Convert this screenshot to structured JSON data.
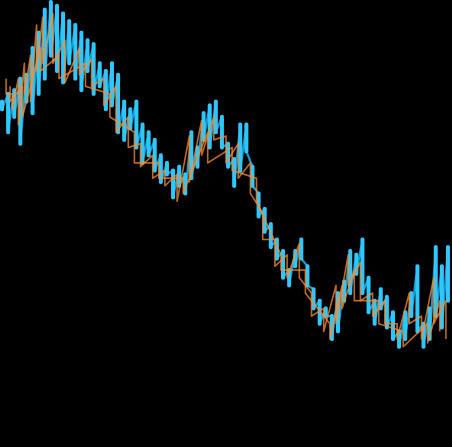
{
  "chart_data": {
    "type": "line",
    "title": "",
    "xlabel": "",
    "ylabel": "",
    "grid": false,
    "legend": "none",
    "x_range": [
      0,
      220
    ],
    "y_range": [
      0,
      100
    ],
    "background": "#000000",
    "colors": {
      "primary": "#2ec8ff",
      "primary_soft": "#1aa9e6",
      "secondary": "#ff8c2f",
      "secondary_mid": "#ff5a3d",
      "secondary_soft": "#ff3b6e"
    },
    "series": [
      {
        "style": "cyan",
        "color": "#2ec8ff",
        "values": [
          [
            0,
            72,
            74
          ],
          [
            3,
            66,
            76
          ],
          [
            6,
            70,
            77
          ],
          [
            9,
            63,
            80
          ],
          [
            12,
            74,
            81
          ],
          [
            15,
            71,
            88
          ],
          [
            18,
            76,
            92
          ],
          [
            21,
            80,
            98
          ],
          [
            24,
            86,
            100
          ],
          [
            27,
            82,
            99
          ],
          [
            30,
            79,
            97
          ],
          [
            33,
            84,
            95
          ],
          [
            36,
            80,
            94
          ],
          [
            39,
            77,
            92
          ],
          [
            42,
            82,
            90
          ],
          [
            45,
            76,
            89
          ],
          [
            48,
            78,
            84
          ],
          [
            51,
            72,
            82
          ],
          [
            54,
            73,
            84
          ],
          [
            57,
            66,
            81
          ],
          [
            60,
            64,
            74
          ],
          [
            63,
            67,
            72
          ],
          [
            66,
            62,
            74
          ],
          [
            69,
            58,
            68
          ],
          [
            72,
            60,
            66
          ],
          [
            75,
            56,
            64
          ],
          [
            78,
            53,
            60
          ],
          [
            81,
            55,
            58
          ],
          [
            84,
            49,
            56
          ],
          [
            87,
            52,
            57
          ],
          [
            90,
            50,
            55
          ],
          [
            93,
            54,
            66
          ],
          [
            96,
            57,
            62
          ],
          [
            99,
            64,
            71
          ],
          [
            102,
            62,
            73
          ],
          [
            105,
            66,
            74
          ],
          [
            108,
            62,
            70
          ],
          [
            111,
            57,
            63
          ],
          [
            114,
            52,
            59
          ],
          [
            117,
            56,
            68
          ],
          [
            120,
            61,
            68
          ],
          [
            123,
            52,
            57
          ],
          [
            126,
            44,
            50
          ],
          [
            129,
            40,
            46
          ],
          [
            132,
            36,
            42
          ],
          [
            135,
            33,
            38
          ],
          [
            138,
            28,
            35
          ],
          [
            141,
            26,
            30
          ],
          [
            144,
            31,
            35
          ],
          [
            147,
            33,
            38
          ],
          [
            150,
            26,
            31
          ],
          [
            153,
            20,
            25
          ],
          [
            156,
            16,
            22
          ],
          [
            159,
            18,
            20
          ],
          [
            162,
            12,
            18
          ],
          [
            165,
            14,
            24
          ],
          [
            168,
            22,
            27
          ],
          [
            171,
            24,
            35
          ],
          [
            174,
            29,
            34
          ],
          [
            177,
            24,
            38
          ],
          [
            180,
            19,
            28
          ],
          [
            183,
            16,
            22
          ],
          [
            186,
            20,
            25
          ],
          [
            189,
            15,
            23
          ],
          [
            192,
            12,
            19
          ],
          [
            195,
            10,
            14
          ],
          [
            198,
            12,
            19
          ],
          [
            201,
            18,
            24
          ],
          [
            204,
            14,
            31
          ],
          [
            207,
            10,
            16
          ],
          [
            210,
            12,
            20
          ],
          [
            213,
            18,
            36
          ],
          [
            216,
            15,
            31
          ],
          [
            219,
            22,
            36
          ]
        ]
      },
      {
        "style": "orange",
        "color": "#ff8c2f",
        "values": [
          [
            2,
            76,
            80
          ],
          [
            5,
            72,
            76
          ],
          [
            8,
            68,
            80
          ],
          [
            11,
            76,
            84
          ],
          [
            14,
            74,
            86
          ],
          [
            17,
            82,
            94
          ],
          [
            20,
            84,
            96
          ],
          [
            25,
            84,
            97
          ],
          [
            31,
            79,
            90
          ],
          [
            38,
            81,
            88
          ],
          [
            44,
            78,
            85
          ],
          [
            50,
            73,
            80
          ],
          [
            56,
            66,
            78
          ],
          [
            62,
            62,
            70
          ],
          [
            68,
            57,
            63
          ],
          [
            74,
            54,
            60
          ],
          [
            80,
            52,
            56
          ],
          [
            86,
            48,
            55
          ],
          [
            92,
            53,
            65
          ],
          [
            98,
            60,
            69
          ],
          [
            104,
            64,
            70
          ],
          [
            110,
            58,
            65
          ],
          [
            116,
            54,
            63
          ],
          [
            122,
            50,
            58
          ],
          [
            128,
            38,
            45
          ],
          [
            134,
            31,
            38
          ],
          [
            140,
            28,
            34
          ],
          [
            146,
            28,
            37
          ],
          [
            152,
            18,
            24
          ],
          [
            158,
            14,
            20
          ],
          [
            164,
            16,
            26
          ],
          [
            170,
            26,
            34
          ],
          [
            176,
            22,
            32
          ],
          [
            182,
            18,
            24
          ],
          [
            188,
            16,
            22
          ],
          [
            194,
            12,
            16
          ],
          [
            200,
            16,
            24
          ],
          [
            206,
            12,
            18
          ],
          [
            212,
            16,
            28
          ],
          [
            218,
            12,
            22
          ]
        ]
      },
      {
        "style": "red",
        "color": "#ff5a3d",
        "values": [
          [
            4,
            74,
            78
          ],
          [
            10,
            70,
            78
          ],
          [
            19,
            82,
            88
          ],
          [
            28,
            80,
            86
          ],
          [
            41,
            78,
            84
          ],
          [
            53,
            70,
            76
          ],
          [
            65,
            58,
            66
          ],
          [
            77,
            54,
            58
          ],
          [
            89,
            50,
            54
          ],
          [
            101,
            58,
            66
          ],
          [
            113,
            56,
            62
          ],
          [
            125,
            48,
            54
          ],
          [
            137,
            30,
            34
          ],
          [
            149,
            24,
            30
          ],
          [
            161,
            12,
            16
          ],
          [
            167,
            20,
            26
          ],
          [
            173,
            22,
            30
          ],
          [
            185,
            16,
            22
          ],
          [
            197,
            10,
            14
          ],
          [
            209,
            11,
            16
          ],
          [
            215,
            14,
            22
          ]
        ]
      }
    ]
  }
}
